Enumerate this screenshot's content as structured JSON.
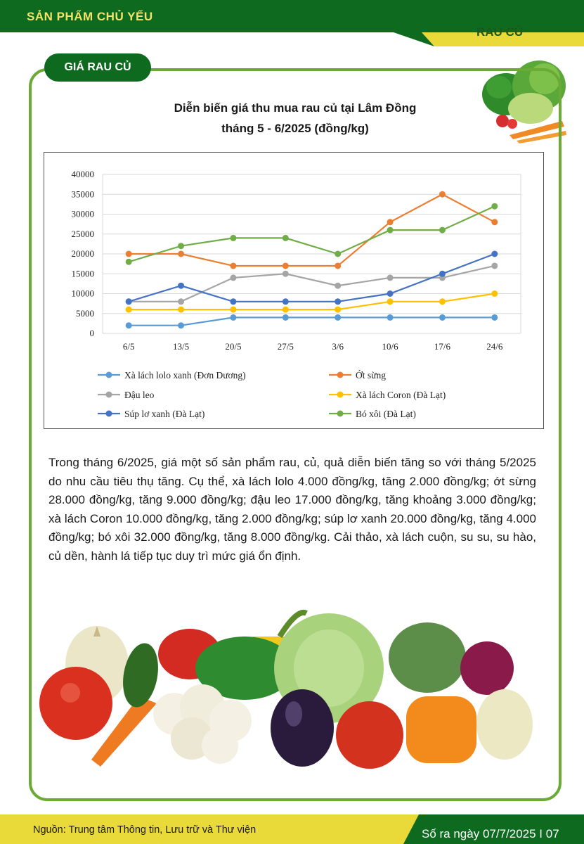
{
  "header": {
    "title": "SẢN PHẨM CHỦ YẾU",
    "section": "RAU CỦ"
  },
  "pill_label": "GIÁ RAU CỦ",
  "chart_title_line1": "Diễn biến giá thu mua rau củ tại Lâm Đồng",
  "chart_title_line2": "tháng 5 - 6/2025 (đồng/kg)",
  "colors": {
    "dark_green": "#0d6a1f",
    "light_green": "#6bab35",
    "yellow": "#e9da3a"
  },
  "chart_data": {
    "type": "line",
    "categories": [
      "6/5",
      "13/5",
      "20/5",
      "27/5",
      "3/6",
      "10/6",
      "17/6",
      "24/6"
    ],
    "ylim": [
      0,
      40000
    ],
    "yticks": [
      0,
      5000,
      10000,
      15000,
      20000,
      25000,
      30000,
      35000,
      40000
    ],
    "grid": true,
    "legend_position": "bottom",
    "series": [
      {
        "name": "Xà lách lolo xanh (Đơn Dương)",
        "color": "#5b9bd5",
        "values": [
          2000,
          2000,
          4000,
          4000,
          4000,
          4000,
          4000,
          4000
        ]
      },
      {
        "name": "Ớt sừng",
        "color": "#ed7d31",
        "values": [
          20000,
          20000,
          17000,
          17000,
          17000,
          28000,
          35000,
          28000
        ]
      },
      {
        "name": "Đậu leo",
        "color": "#a5a5a5",
        "values": [
          8000,
          8000,
          14000,
          15000,
          12000,
          14000,
          14000,
          17000
        ]
      },
      {
        "name": "Xà lách Coron (Đà Lạt)",
        "color": "#ffc000",
        "values": [
          6000,
          6000,
          6000,
          6000,
          6000,
          8000,
          8000,
          10000
        ]
      },
      {
        "name": "Súp lơ xanh (Đà Lạt)",
        "color": "#4472c4",
        "values": [
          8000,
          12000,
          8000,
          8000,
          8000,
          10000,
          15000,
          20000
        ]
      },
      {
        "name": "Bó xôi (Đà Lạt)",
        "color": "#70ad47",
        "values": [
          18000,
          22000,
          24000,
          24000,
          20000,
          26000,
          26000,
          32000
        ]
      }
    ]
  },
  "body_text": "Trong tháng 6/2025, giá một số sản phẩm rau, củ, quả diễn biến tăng so với tháng 5/2025 do nhu cầu tiêu thụ tăng. Cụ thể, xà lách lolo 4.000 đồng/kg, tăng 2.000 đồng/kg; ớt sừng 28.000 đồng/kg, tăng 9.000 đồng/kg; đậu leo 17.000 đồng/kg, tăng khoảng 3.000 đồng/kg; xà lách Coron 10.000 đồng/kg, tăng 2.000 đồng/kg; súp lơ xanh 20.000 đồng/kg, tăng 4.000 đồng/kg; bó xôi 32.000 đồng/kg, tăng 8.000 đồng/kg. Cải thảo, xà lách cuộn, su su, su hào, củ dền, hành lá tiếp tục duy trì mức giá ổn định.",
  "footer": {
    "source": "Nguồn: Trung tâm Thông tin, Lưu trữ và Thư viện",
    "issue": "Số ra ngày 07/7/2025  I 07"
  }
}
